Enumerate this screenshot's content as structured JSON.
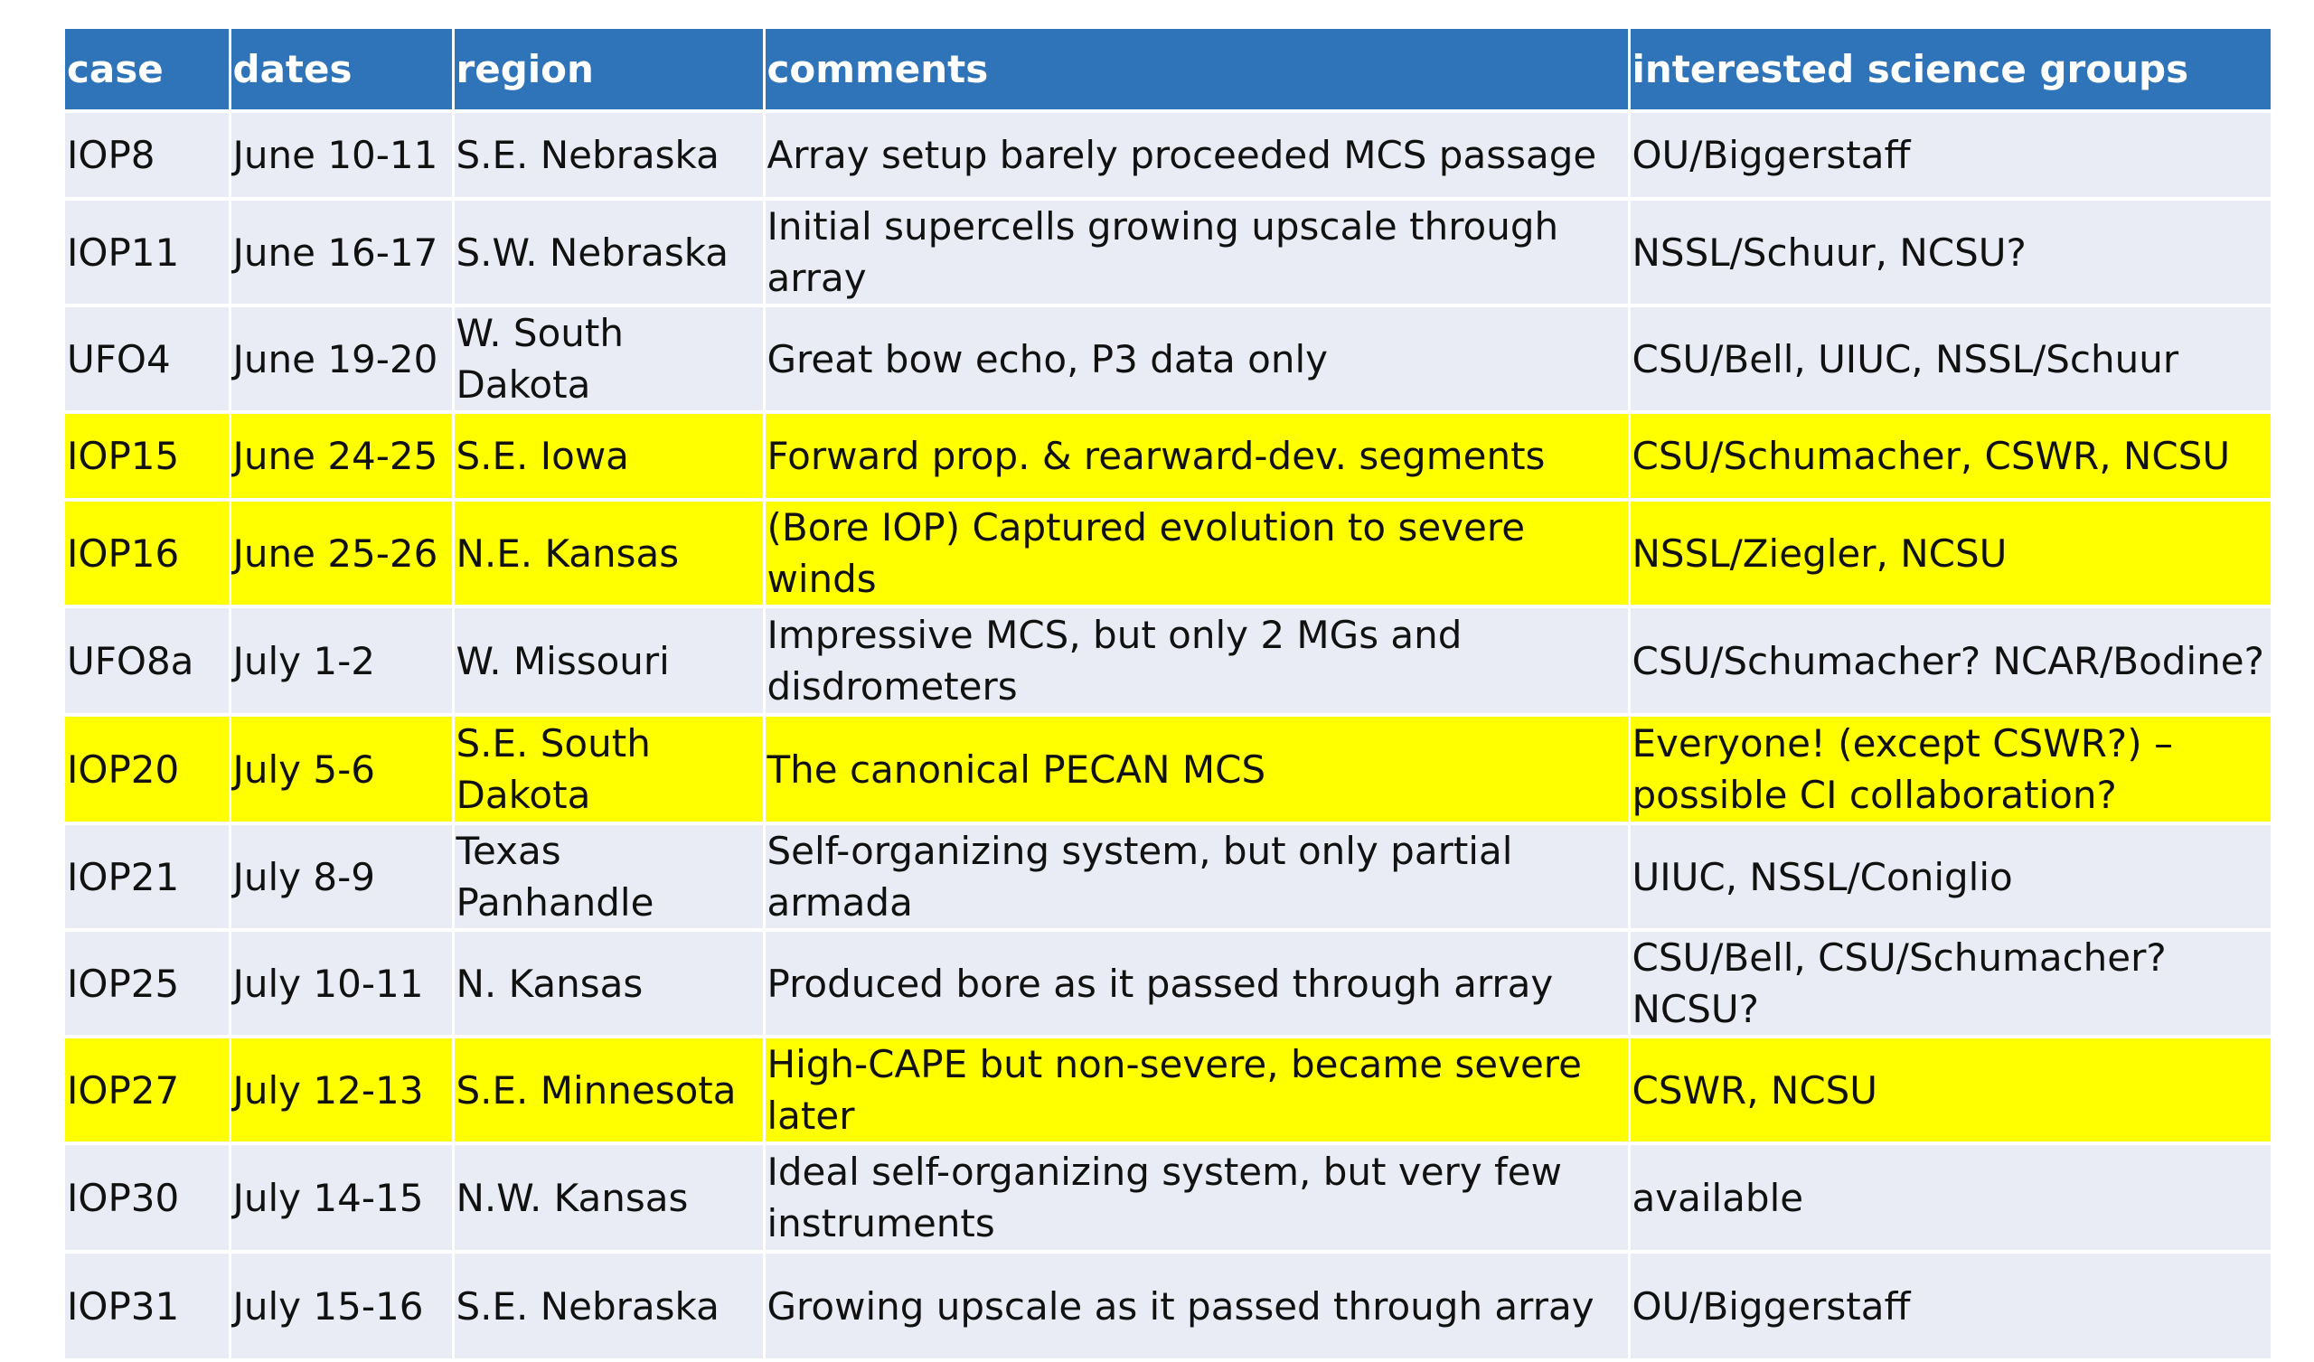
{
  "table": {
    "headers": [
      "case",
      "dates",
      "region",
      "comments",
      "interested science groups"
    ],
    "rows": [
      {
        "case": "IOP8",
        "dates": "June 10-11",
        "region": "S.E. Nebraska",
        "comments": "Array setup barely proceeded MCS passage",
        "groups": "OU/Biggerstaff",
        "highlight": false
      },
      {
        "case": "IOP11",
        "dates": "June 16-17",
        "region": "S.W. Nebraska",
        "comments": "Initial supercells growing upscale through array",
        "groups": "NSSL/Schuur, NCSU?",
        "highlight": false
      },
      {
        "case": "UFO4",
        "dates": "June 19-20",
        "region": "W. South Dakota",
        "comments": "Great bow echo, P3 data only",
        "groups": "CSU/Bell, UIUC, NSSL/Schuur",
        "highlight": false
      },
      {
        "case": "IOP15",
        "dates": "June 24-25",
        "region": "S.E. Iowa",
        "comments": "Forward prop. & rearward-dev. segments",
        "groups": "CSU/Schumacher, CSWR, NCSU",
        "highlight": true
      },
      {
        "case": "IOP16",
        "dates": "June 25-26",
        "region": "N.E. Kansas",
        "comments": "(Bore IOP) Captured evolution to severe winds",
        "groups": "NSSL/Ziegler, NCSU",
        "highlight": true
      },
      {
        "case": "UFO8a",
        "dates": "July 1-2",
        "region": "W. Missouri",
        "comments": "Impressive MCS, but only 2 MGs and disdrometers",
        "groups": "CSU/Schumacher? NCAR/Bodine?",
        "highlight": false
      },
      {
        "case": "IOP20",
        "dates": "July 5-6",
        "region": "S.E. South Dakota",
        "comments": "The canonical PECAN MCS",
        "groups": "Everyone! (except CSWR?) – possible CI collaboration?",
        "highlight": true
      },
      {
        "case": "IOP21",
        "dates": "July 8-9",
        "region": "Texas Panhandle",
        "comments": "Self-organizing system, but only partial armada",
        "groups": "UIUC, NSSL/Coniglio",
        "highlight": false
      },
      {
        "case": "IOP25",
        "dates": "July 10-11",
        "region": "N. Kansas",
        "comments": "Produced bore as it passed through array",
        "groups": "CSU/Bell, CSU/Schumacher? NCSU?",
        "highlight": false
      },
      {
        "case": "IOP27",
        "dates": "July 12-13",
        "region": "S.E. Minnesota",
        "comments": "High-CAPE but non-severe, became severe later",
        "groups": "CSWR, NCSU",
        "highlight": true
      },
      {
        "case": "IOP30",
        "dates": "July 14-15",
        "region": "N.W. Kansas",
        "comments": "Ideal self-organizing system, but very few instruments",
        "groups": "available",
        "highlight": false
      },
      {
        "case": "IOP31",
        "dates": "July 15-16",
        "region": "S.E. Nebraska",
        "comments": "Growing upscale as it passed through array",
        "groups": "OU/Biggerstaff",
        "highlight": false
      }
    ]
  },
  "colors": {
    "header_bg": "#2f74b8",
    "row_bg": "#e9ecf4",
    "highlight_bg": "#ffff00"
  }
}
